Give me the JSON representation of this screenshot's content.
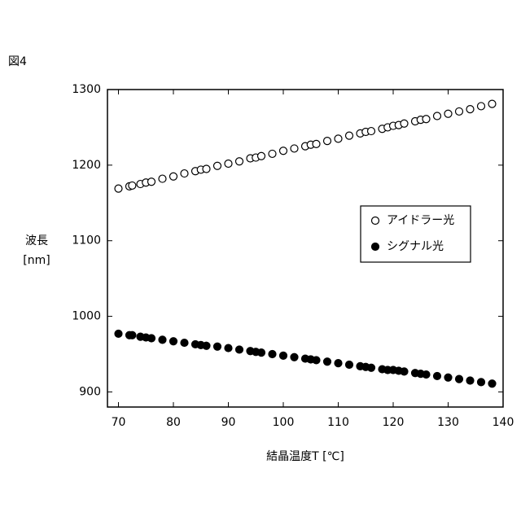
{
  "chart_data": {
    "type": "scatter",
    "figure_label": "図4",
    "xlabel": "結晶温度T [℃]",
    "ylabel": [
      "波長",
      "[nm]"
    ],
    "xlim": [
      68,
      140
    ],
    "ylim": [
      880,
      1300
    ],
    "xticks": [
      70,
      80,
      90,
      100,
      110,
      120,
      130,
      140
    ],
    "yticks": [
      900,
      1000,
      1100,
      1200,
      1300
    ],
    "legend": "right",
    "series": [
      {
        "name": "アイドラー光",
        "color": "#000000",
        "marker": "open",
        "x": [
          70,
          72,
          72.5,
          74,
          75,
          76,
          78,
          80,
          82,
          84,
          85,
          86,
          88,
          90,
          92,
          94,
          95,
          96,
          98,
          100,
          102,
          104,
          105,
          106,
          108,
          110,
          112,
          114,
          115,
          116,
          118,
          119,
          120,
          121,
          122,
          124,
          125,
          126,
          128,
          130,
          132,
          134,
          136,
          138
        ],
        "values": [
          1169,
          1172,
          1173,
          1175,
          1177,
          1178,
          1182,
          1185,
          1189,
          1192,
          1194,
          1195,
          1199,
          1202,
          1205,
          1209,
          1210,
          1212,
          1215,
          1219,
          1222,
          1225,
          1227,
          1228,
          1232,
          1235,
          1239,
          1242,
          1244,
          1245,
          1248,
          1250,
          1252,
          1253,
          1255,
          1258,
          1260,
          1261,
          1265,
          1268,
          1271,
          1274,
          1278,
          1281
        ]
      },
      {
        "name": "シグナル光",
        "color": "#000000",
        "marker": "filled",
        "x": [
          70,
          72,
          72.5,
          74,
          75,
          76,
          78,
          80,
          82,
          84,
          85,
          86,
          88,
          90,
          92,
          94,
          95,
          96,
          98,
          100,
          102,
          104,
          105,
          106,
          108,
          110,
          112,
          114,
          115,
          116,
          118,
          119,
          120,
          121,
          122,
          124,
          125,
          126,
          128,
          130,
          132,
          134,
          136,
          138
        ],
        "values": [
          977,
          975,
          975,
          973,
          972,
          971,
          969,
          967,
          965,
          963,
          962,
          961,
          960,
          958,
          956,
          954,
          953,
          952,
          950,
          948,
          946,
          944,
          943,
          942,
          940,
          938,
          936,
          934,
          933,
          932,
          930,
          929,
          929,
          928,
          927,
          925,
          924,
          923,
          921,
          919,
          917,
          915,
          913,
          911
        ]
      }
    ]
  }
}
